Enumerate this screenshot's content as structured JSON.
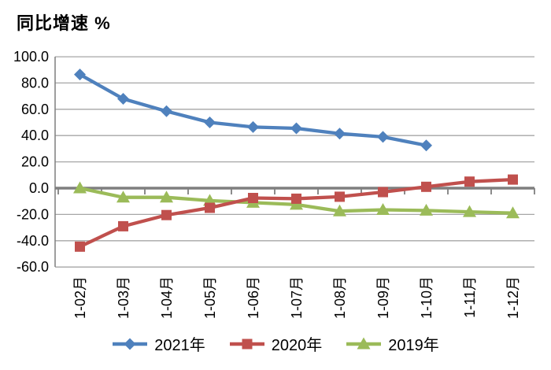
{
  "chart": {
    "title": "同比增速 %"
  },
  "chart_data": {
    "type": "line",
    "title": "同比增速 %",
    "ylabel": "同比增速 %",
    "xlabel": "",
    "categories": [
      "1-02月",
      "1-03月",
      "1-04月",
      "1-05月",
      "1-06月",
      "1-07月",
      "1-08月",
      "1-09月",
      "1-10月",
      "1-11月",
      "1-12月"
    ],
    "ylim": [
      -60,
      100
    ],
    "y_ticks": [
      100,
      80,
      60,
      40,
      20,
      0,
      -20,
      -40,
      -60
    ],
    "y_tick_labels": [
      "100.0",
      "80.0",
      "60.0",
      "40.0",
      "20.0",
      "0.0",
      "-20.0",
      "-40.0",
      "-60.0"
    ],
    "grid": true,
    "legend_position": "bottom",
    "axis_color": "#7F7F7F",
    "gridline_color": "#A6A6A6",
    "text_color": "#000000",
    "series": [
      {
        "name": "2021年",
        "color": "#4F81BD",
        "marker": "diamond",
        "values": [
          86.5,
          68,
          58.5,
          50,
          46.5,
          45.5,
          41.5,
          39,
          32.5,
          null,
          null
        ]
      },
      {
        "name": "2020年",
        "color": "#C0504D",
        "marker": "square",
        "values": [
          -44.5,
          -29,
          -20.5,
          -15,
          -7.5,
          -8,
          -6.5,
          -3,
          1,
          5,
          6.5
        ]
      },
      {
        "name": "2019年",
        "color": "#9BBB59",
        "marker": "triangle",
        "values": [
          0,
          -7,
          -7,
          -9.5,
          -11,
          -12.5,
          -17.5,
          -16.5,
          -17,
          -18,
          -19
        ]
      }
    ],
    "draw_order": [
      0,
      2,
      1
    ]
  },
  "legend": {
    "items": [
      {
        "label": "2021年",
        "color": "#4F81BD",
        "marker": "diamond"
      },
      {
        "label": "2020年",
        "color": "#C0504D",
        "marker": "square"
      },
      {
        "label": "2019年",
        "color": "#9BBB59",
        "marker": "triangle"
      }
    ]
  }
}
